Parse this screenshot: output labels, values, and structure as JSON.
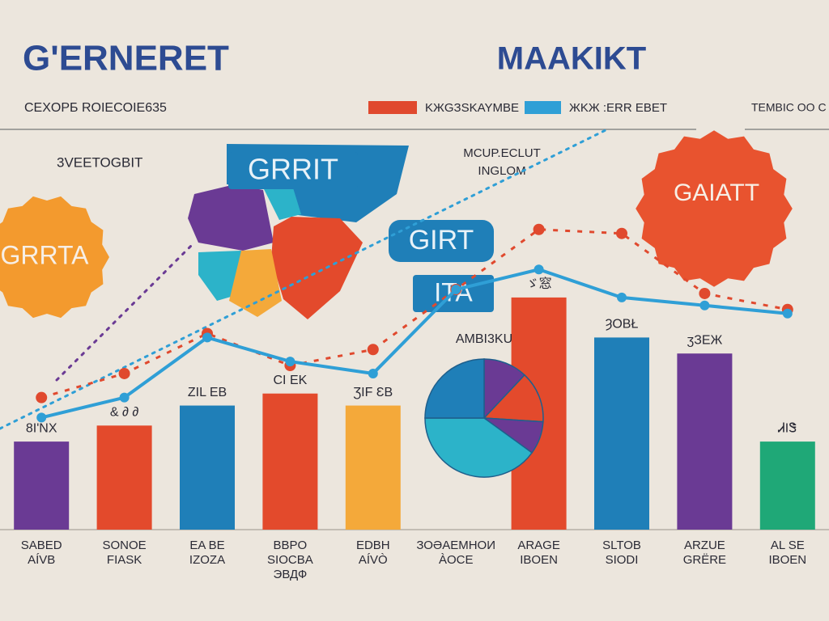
{
  "header": {
    "title": "G'ERNERET",
    "title2": "MAAKIKT",
    "subtitle": "CEXOPБ ROIECOIE635",
    "corner": "TEMBIC OO C"
  },
  "labels": {
    "note1": "3VEETOGBIT",
    "note2a": "MCUP.ECLUT",
    "note2b": "INGLOM",
    "badge_map": "GRRIT",
    "badge1": "GIRT",
    "badge2": "ITA",
    "gear_right": "GAIATT",
    "gear_left": "GRRTA"
  },
  "chart_data": [
    {
      "type": "bar",
      "categories": [
        "SABED\nAÍVB",
        "SONOE\nFIASK",
        "EA BE\nIZOZA",
        "BBPO\nSIOCBA\nЭВДФ",
        "EDBH\nAÍVÒ",
        "ЗОӘАЕМНОИ\nÀОСЕ",
        "ARAGE\nIBOEN",
        "SLTOB\nSIODI",
        "ARZUE\nGRËRE",
        "AL SE\nIBOEN"
      ],
      "values": [
        22,
        26,
        31,
        34,
        31,
        null,
        58,
        48,
        44,
        22
      ],
      "annotations": [
        "8I'NX",
        "& ∂ ∂",
        "ZIL EB",
        "CI EK",
        "ƷIF ƐB",
        "",
        "ゞ窓",
        "ȜOBŁ",
        "ʒЗЕЖ",
        "ᏗIᏕ"
      ],
      "colors": [
        "#6a3a94",
        "#e34a2c",
        "#1f7fb8",
        "#e34a2c",
        "#f4a93a",
        null,
        "#e34a2c",
        "#1f7fb8",
        "#6a3a94",
        "#1fa877"
      ],
      "ylim": [
        0,
        100
      ]
    },
    {
      "type": "line",
      "series": [
        {
          "name": "KЖGЗSKAYMBЕ",
          "color": "#e0492e",
          "values": [
            33,
            39,
            49,
            41,
            45,
            60,
            75,
            74,
            59,
            55
          ]
        },
        {
          "name": "ЖKЖ :ERR ЕBЕТ",
          "color": "#2f9fd6",
          "values": [
            28,
            33,
            48,
            42,
            39,
            60,
            65,
            58,
            56,
            54
          ]
        }
      ],
      "ylim": [
        0,
        100
      ]
    },
    {
      "type": "pie",
      "title": "AMBI3KU",
      "values": [
        12,
        14,
        9,
        40,
        25
      ],
      "colors": [
        "#6a3a94",
        "#e34a2c",
        "#6a3a94",
        "#2cb3c9",
        "#1f7fb8"
      ]
    }
  ]
}
